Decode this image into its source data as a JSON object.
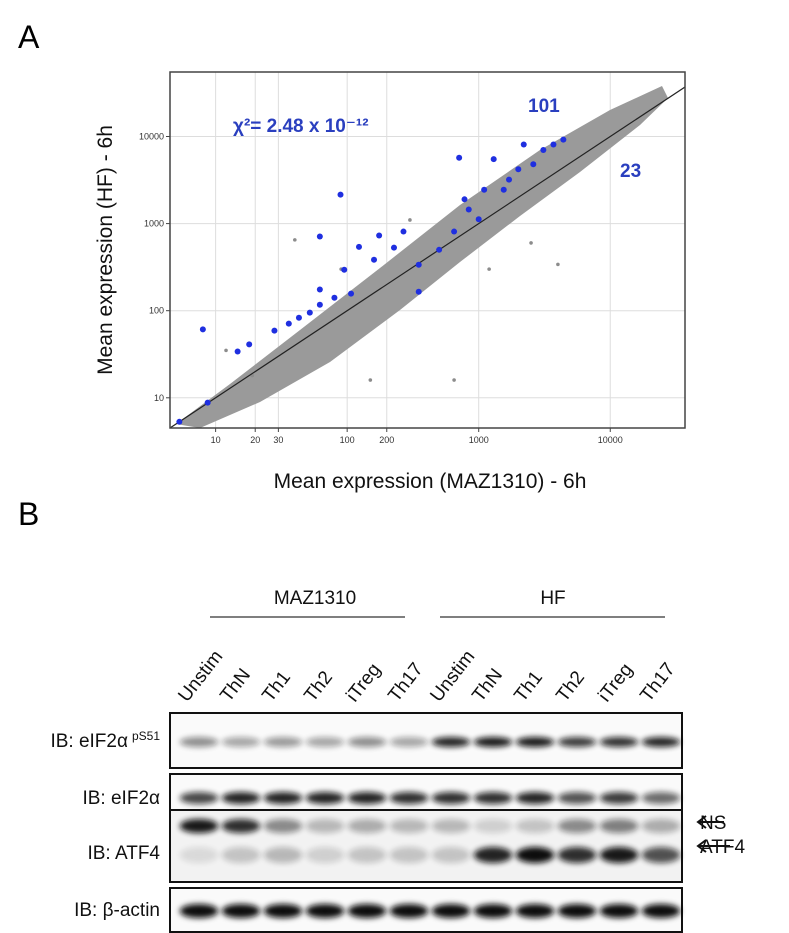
{
  "panel_labels": [
    "A",
    "B"
  ],
  "chart_data": {
    "type": "scatter",
    "xlabel": "Mean expression (MAZ1310) - 6h",
    "ylabel": "Mean expression (HF) - 6h",
    "annotations": [
      "χ²= 2.48 x 10⁻¹²",
      "101",
      "23"
    ],
    "xscale": "log",
    "yscale": "log",
    "grid": true,
    "xlim": [
      4.5,
      37000
    ],
    "ylim": [
      4.5,
      55000
    ],
    "xticks": [
      10,
      20,
      30,
      100,
      200,
      1000,
      10000
    ],
    "yticks": [
      10,
      100,
      1000,
      10000
    ],
    "series": [
      {
        "color": "#8c8c8c",
        "x": [
          40,
          150,
          650,
          4000,
          19,
          300,
          1200,
          90,
          2500,
          12
        ],
        "y": [
          650,
          16,
          16,
          340,
          18,
          1100,
          300,
          300,
          600,
          35
        ]
      },
      {
        "color": "#1f2fe0",
        "x": [
          5.3,
          8.7,
          8,
          14.7,
          18,
          28,
          36,
          43,
          52,
          62,
          80,
          95,
          107,
          123,
          160,
          175,
          227,
          268,
          350,
          500,
          650,
          710,
          780,
          840,
          1000,
          1100,
          1300,
          1550,
          1700,
          2000,
          2200,
          2600,
          3100,
          3700,
          4400,
          89,
          62,
          350,
          62
        ],
        "y": [
          5.3,
          8.8,
          61,
          34,
          41,
          59,
          71,
          83,
          95,
          117,
          141,
          295,
          157,
          540,
          385,
          730,
          530,
          810,
          337,
          500,
          810,
          5700,
          1900,
          1450,
          1120,
          2450,
          5500,
          2450,
          3200,
          4200,
          8100,
          4800,
          7000,
          8100,
          9200,
          2150,
          710,
          165,
          175
        ]
      }
    ]
  },
  "blot": {
    "groups": [
      "MAZ1310",
      "HF"
    ],
    "lanes": [
      "Unstim",
      "ThN",
      "Th1",
      "Th2",
      "iTreg",
      "Th17",
      "Unstim",
      "ThN",
      "Th1",
      "Th2",
      "iTreg",
      "Th17"
    ],
    "rows": [
      {
        "label": "IB: eIF2α",
        "superscript": "pS51"
      },
      {
        "label": "IB: eIF2α"
      },
      {
        "label": "IB: ATF4"
      },
      {
        "label": "IB: β-actin"
      }
    ],
    "arrows": [
      "NS",
      "ATF4"
    ]
  }
}
